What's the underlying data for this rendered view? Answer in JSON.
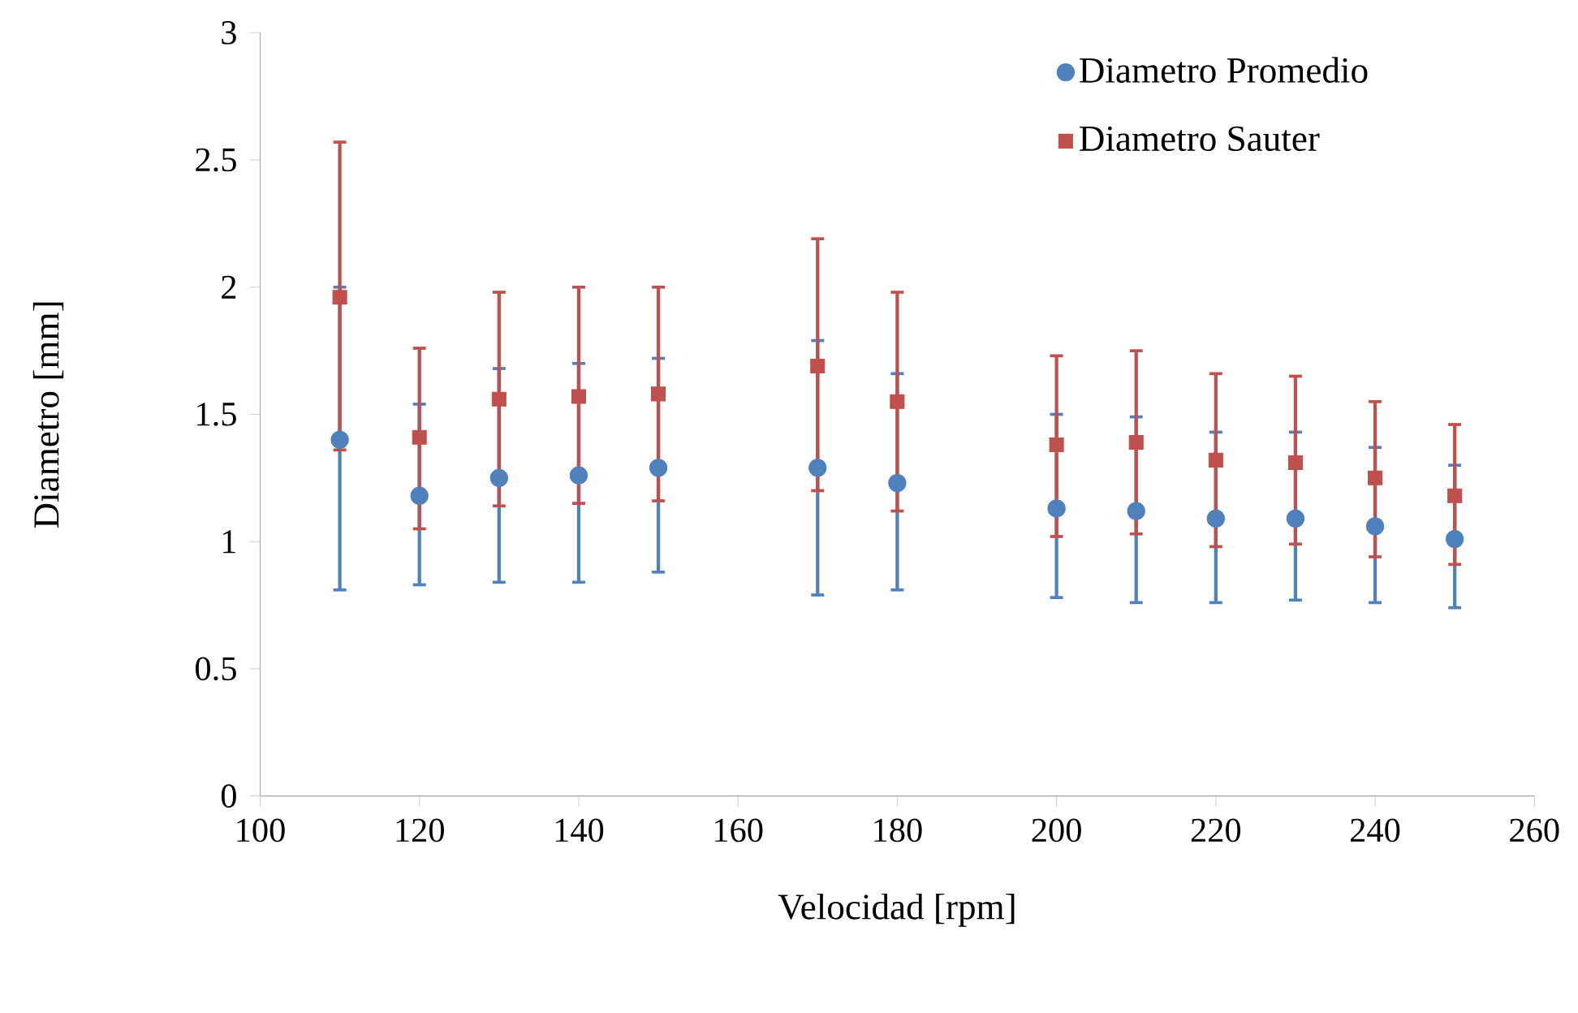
{
  "chart_data": {
    "type": "scatter",
    "xlabel": "Velocidad [rpm]",
    "ylabel": "Diametro [mm]",
    "x": [
      110,
      120,
      130,
      140,
      150,
      170,
      180,
      200,
      210,
      220,
      230,
      240,
      250
    ],
    "xlim": [
      100,
      260
    ],
    "xticks": [
      100,
      120,
      140,
      160,
      180,
      200,
      220,
      240,
      260
    ],
    "ylim": [
      0,
      3
    ],
    "yticks": [
      0,
      0.5,
      1,
      1.5,
      2,
      2.5,
      3
    ],
    "legend": "top right",
    "series": [
      {
        "name": "Diametro Promedio",
        "color": "#4f81bd",
        "marker": "circle",
        "values": [
          1.4,
          1.18,
          1.25,
          1.26,
          1.29,
          1.29,
          1.23,
          1.13,
          1.12,
          1.09,
          1.09,
          1.06,
          1.01
        ],
        "errors": [
          [
            0.81,
            2.0
          ],
          [
            0.83,
            1.54
          ],
          [
            0.84,
            1.68
          ],
          [
            0.84,
            1.7
          ],
          [
            0.88,
            1.72
          ],
          [
            0.79,
            1.79
          ],
          [
            0.81,
            1.66
          ],
          [
            0.78,
            1.5
          ],
          [
            0.76,
            1.49
          ],
          [
            0.76,
            1.43
          ],
          [
            0.77,
            1.43
          ],
          [
            0.76,
            1.37
          ],
          [
            0.74,
            1.3
          ]
        ]
      },
      {
        "name": "Diametro Sauter",
        "color": "#c0504d",
        "marker": "square",
        "values": [
          1.96,
          1.41,
          1.56,
          1.57,
          1.58,
          1.69,
          1.55,
          1.38,
          1.39,
          1.32,
          1.31,
          1.25,
          1.18
        ],
        "errors": [
          [
            1.36,
            2.57
          ],
          [
            1.05,
            1.76
          ],
          [
            1.14,
            1.98
          ],
          [
            1.15,
            2.0
          ],
          [
            1.16,
            2.0
          ],
          [
            1.2,
            2.19
          ],
          [
            1.12,
            1.98
          ],
          [
            1.02,
            1.73
          ],
          [
            1.03,
            1.75
          ],
          [
            0.98,
            1.66
          ],
          [
            0.99,
            1.65
          ],
          [
            0.94,
            1.55
          ],
          [
            0.91,
            1.46
          ]
        ]
      }
    ]
  }
}
